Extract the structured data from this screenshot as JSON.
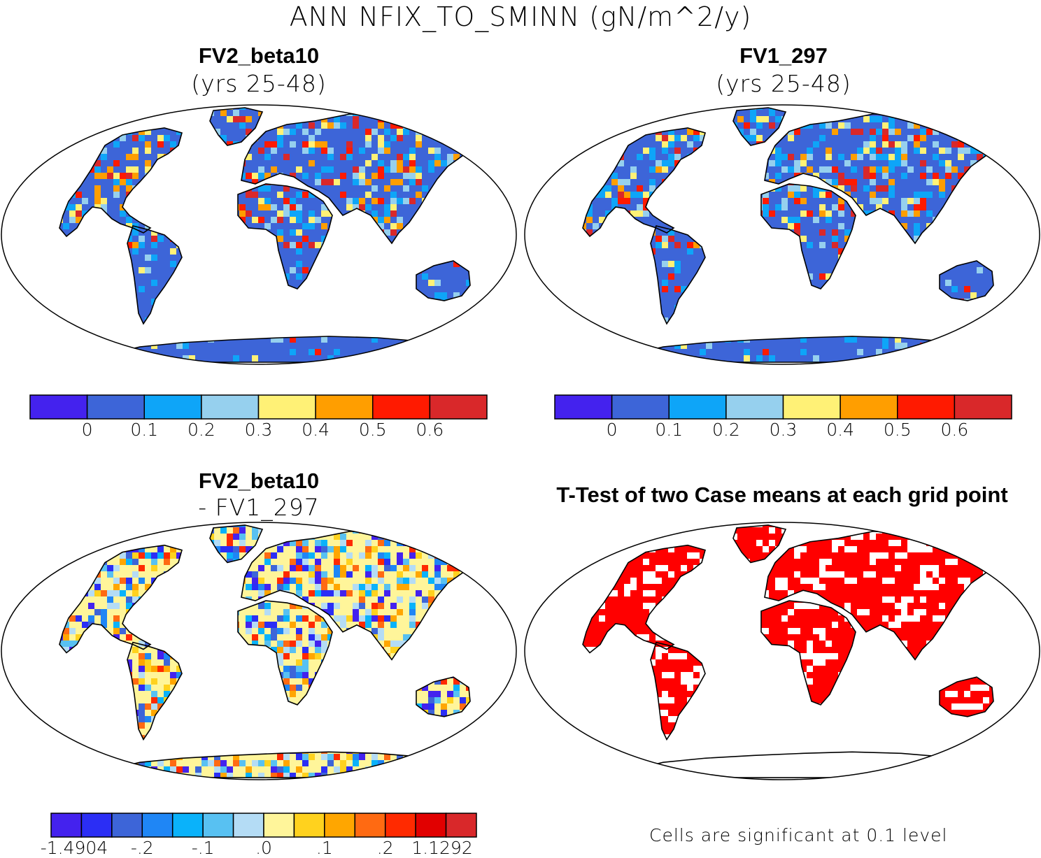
{
  "title": "ANN NFIX_TO_SMINN (gN/m^2/y)",
  "panels": [
    {
      "title": "FV2_beta10",
      "subtitle": "(yrs 25-48)"
    },
    {
      "title": "FV1_297",
      "subtitle": "(yrs 25-48)"
    },
    {
      "title": "FV2_beta10",
      "subtitle": "- FV1_297"
    },
    {
      "title": "T-Test of two Case means at each grid point",
      "subtitle": ""
    }
  ],
  "colorbar_abs": {
    "colors": [
      "#4422ee",
      "#3d65d8",
      "#0ea5f8",
      "#96d0ee",
      "#fff176",
      "#ff9e00",
      "#ff1a00",
      "#d9282a"
    ],
    "labels": [
      "0",
      "0.1",
      "0.2",
      "0.3",
      "0.4",
      "0.5",
      "0.6"
    ]
  },
  "colorbar_diff": {
    "colors": [
      "#4422ee",
      "#2b2ef5",
      "#3d65d8",
      "#1f86f5",
      "#0ab2fa",
      "#58c1f2",
      "#b4dcf5",
      "#fff59a",
      "#ffd21e",
      "#ffa600",
      "#ff6a12",
      "#ff2a00",
      "#e10000",
      "#d9282a"
    ],
    "labels": [
      "-1.4904",
      "-.2",
      "-.1",
      ".0",
      ".1",
      ".2",
      "1.1292"
    ]
  },
  "note": "Cells are significant at 0.1 level",
  "colors": {
    "land_low": "#3d65d8",
    "diff_neutral": "#fff59a",
    "significant": "#ff0000"
  }
}
